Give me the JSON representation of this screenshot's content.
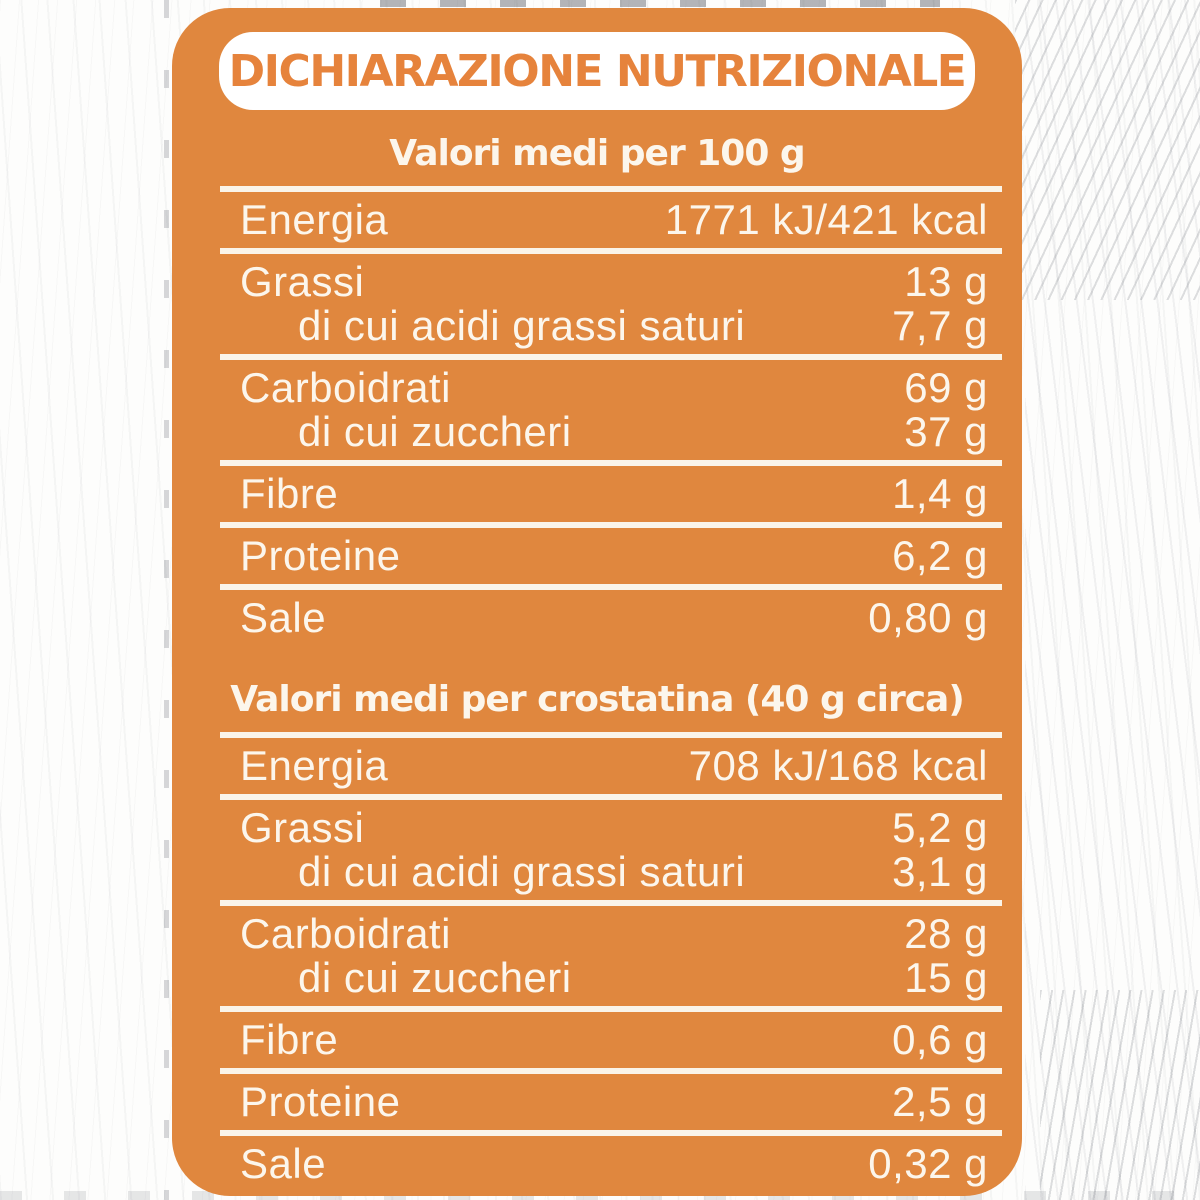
{
  "title": "DICHIARAZIONE NUTRIZIONALE",
  "colors": {
    "card_orange": "#E0873E",
    "title_orange": "#E6833C",
    "text_cream": "#FCF6EC",
    "divider_cream": "#FAF4E9"
  },
  "sections": [
    {
      "heading": "Valori medi per 100 g",
      "rows": [
        {
          "label": "Energia",
          "value": "1771 kJ/421 kcal"
        },
        {
          "label": "Grassi",
          "value": "13 g",
          "sub": [
            {
              "label": "di cui acidi grassi saturi",
              "value": "7,7 g"
            }
          ]
        },
        {
          "label": "Carboidrati",
          "value": "69 g",
          "sub": [
            {
              "label": "di cui zuccheri",
              "value": "37 g"
            }
          ]
        },
        {
          "label": "Fibre",
          "value": "1,4 g"
        },
        {
          "label": "Proteine",
          "value": "6,2 g"
        },
        {
          "label": "Sale",
          "value": "0,80 g"
        }
      ]
    },
    {
      "heading": "Valori medi per crostatina (40 g circa)",
      "rows": [
        {
          "label": "Energia",
          "value": "708 kJ/168 kcal"
        },
        {
          "label": "Grassi",
          "value": "5,2 g",
          "sub": [
            {
              "label": "di cui acidi grassi saturi",
              "value": "3,1 g"
            }
          ]
        },
        {
          "label": "Carboidrati",
          "value": "28 g",
          "sub": [
            {
              "label": "di cui zuccheri",
              "value": "15 g"
            }
          ]
        },
        {
          "label": "Fibre",
          "value": "0,6 g"
        },
        {
          "label": "Proteine",
          "value": "2,5 g"
        },
        {
          "label": "Sale",
          "value": "0,32 g"
        }
      ]
    }
  ]
}
